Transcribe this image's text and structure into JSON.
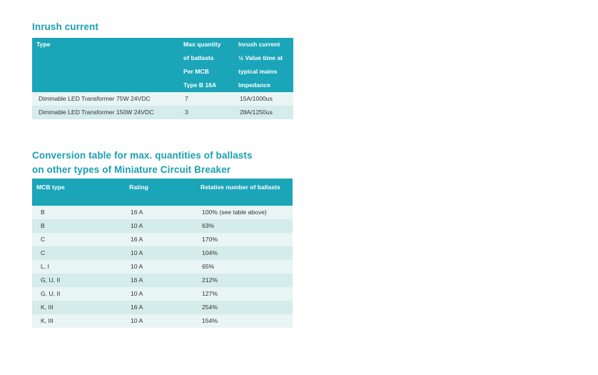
{
  "inrush": {
    "title": "Inrush current",
    "headers": {
      "type": [
        "Type"
      ],
      "max_quantity": [
        "Max quantity",
        "of ballasts",
        "Per MCB",
        "Type B 16A"
      ],
      "inrush": [
        "Inrush current",
        "½ Value time at",
        "typical mains",
        "Impedance"
      ]
    },
    "rows": [
      {
        "type": "Dimmable LED Transformer 75W 24VDC",
        "max_quantity": "7",
        "inrush": "15A/1000us"
      },
      {
        "type": "Dimmable LED Transformer 150W 24VDC",
        "max_quantity": "3",
        "inrush": "28A/1250us"
      }
    ]
  },
  "conversion": {
    "title_lines": [
      "Conversion table for max. quantities of ballasts",
      "on other types of Miniature Circuit Breaker"
    ],
    "headers": {
      "mcb_type": "MCB type",
      "rating": "Rating",
      "relative": "Relative number of ballasts"
    },
    "rows": [
      {
        "mcb_type": "B",
        "rating": "16 A",
        "relative": "100% (see table above)"
      },
      {
        "mcb_type": "B",
        "rating": "10 A",
        "relative": "63%"
      },
      {
        "mcb_type": "C",
        "rating": "16 A",
        "relative": "170%"
      },
      {
        "mcb_type": "C",
        "rating": "10 A",
        "relative": "104%"
      },
      {
        "mcb_type": "L, I",
        "rating": "10 A",
        "relative": "65%"
      },
      {
        "mcb_type": "G, U, II",
        "rating": "16 A",
        "relative": "212%"
      },
      {
        "mcb_type": "G, U, II",
        "rating": "10 A",
        "relative": "127%"
      },
      {
        "mcb_type": "K, III",
        "rating": "16 A",
        "relative": "254%"
      },
      {
        "mcb_type": "K, III",
        "rating": "10 A",
        "relative": "154%"
      }
    ]
  }
}
